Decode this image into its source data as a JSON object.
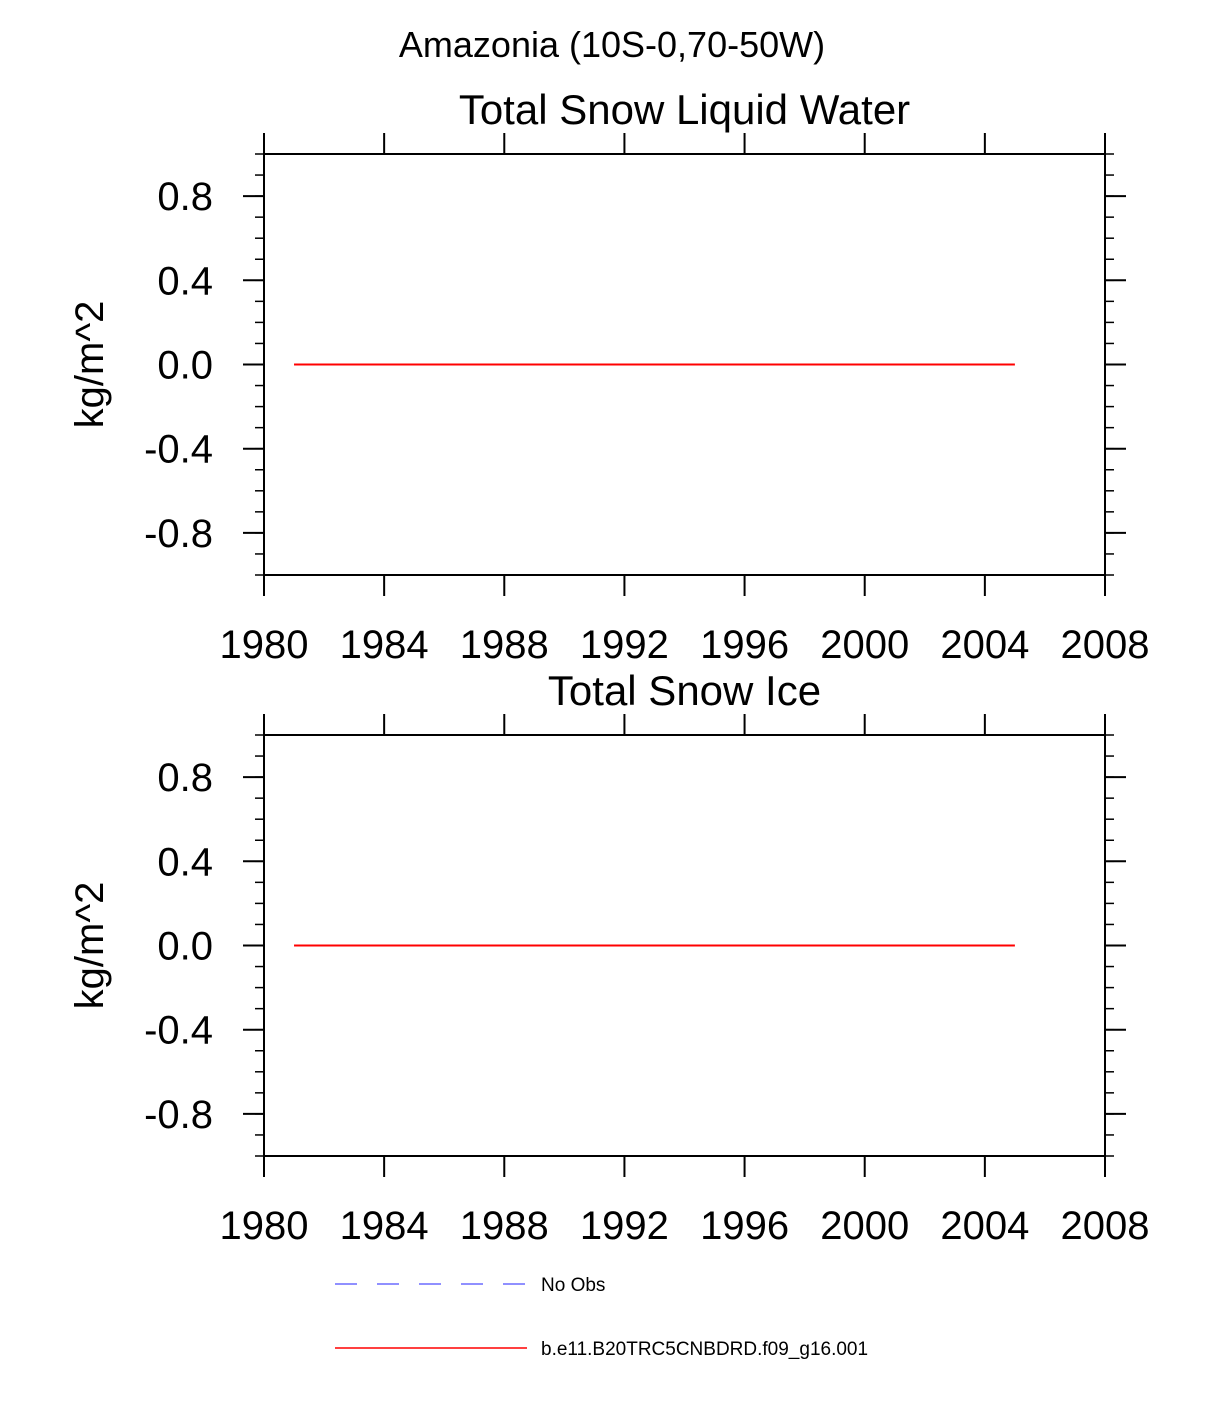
{
  "main_title": "Amazonia (10S-0,70-50W)",
  "colors": {
    "model": "#ff0000",
    "obs": "#6b6bff",
    "axis": "#000000"
  },
  "chart_data": [
    {
      "type": "line",
      "title": "Total Snow Liquid Water",
      "xlabel": "",
      "ylabel": "kg/m^2",
      "xlim": [
        1980,
        2008
      ],
      "ylim": [
        -1.0,
        1.0
      ],
      "x_ticks": [
        "1980",
        "1984",
        "1988",
        "1992",
        "1996",
        "2000",
        "2004",
        "2008"
      ],
      "y_ticks": [
        "0.8",
        "0.4",
        "0.0",
        "-0.4",
        "-0.8"
      ],
      "grid": false,
      "series": [
        {
          "name": "b.e11.B20TRC5CNBDRD.f09_g16.001",
          "x": [
            1981,
            2005
          ],
          "y": [
            0.0,
            0.0
          ]
        }
      ]
    },
    {
      "type": "line",
      "title": "Total Snow Ice",
      "xlabel": "",
      "ylabel": "kg/m^2",
      "xlim": [
        1980,
        2008
      ],
      "ylim": [
        -1.0,
        1.0
      ],
      "x_ticks": [
        "1980",
        "1984",
        "1988",
        "1992",
        "1996",
        "2000",
        "2004",
        "2008"
      ],
      "y_ticks": [
        "0.8",
        "0.4",
        "0.0",
        "-0.4",
        "-0.8"
      ],
      "grid": false,
      "series": [
        {
          "name": "b.e11.B20TRC5CNBDRD.f09_g16.001",
          "x": [
            1981,
            2005
          ],
          "y": [
            0.0,
            0.0
          ]
        }
      ]
    }
  ],
  "legend": {
    "placement": "bottom",
    "items": [
      {
        "label": "No Obs",
        "style": "dashed",
        "color": "#6b6bff"
      },
      {
        "label": "b.e11.B20TRC5CNBDRD.f09_g16.001",
        "style": "solid",
        "color": "#ff0000"
      }
    ]
  }
}
